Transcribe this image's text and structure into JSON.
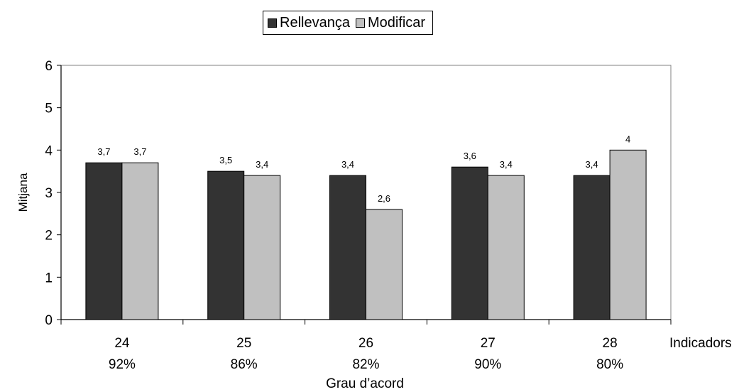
{
  "chart_data": {
    "type": "bar",
    "categories": [
      "24",
      "25",
      "26",
      "27",
      "28"
    ],
    "category_sublabels": [
      "92%",
      "86%",
      "82%",
      "90%",
      "80%"
    ],
    "series": [
      {
        "name": "Rellevança",
        "color": "#333333",
        "values": [
          3.7,
          3.5,
          3.4,
          3.6,
          3.4
        ],
        "labels": [
          "3,7",
          "3,5",
          "3,4",
          "3,6",
          "3,4"
        ]
      },
      {
        "name": "Modificar",
        "color": "#c0c0c0",
        "values": [
          3.7,
          3.4,
          2.6,
          3.4,
          4.0
        ],
        "labels": [
          "3,7",
          "3,4",
          "2,6",
          "3,4",
          "4"
        ]
      }
    ],
    "xlabel": "Grau d’acord",
    "x_axis_side_label": "Indicadors",
    "ylabel": "Mitjana",
    "ylim": [
      0,
      6
    ],
    "yticks": [
      "0",
      "1",
      "2",
      "3",
      "4",
      "5",
      "6"
    ],
    "grid": false,
    "legend_position": "top-center"
  }
}
